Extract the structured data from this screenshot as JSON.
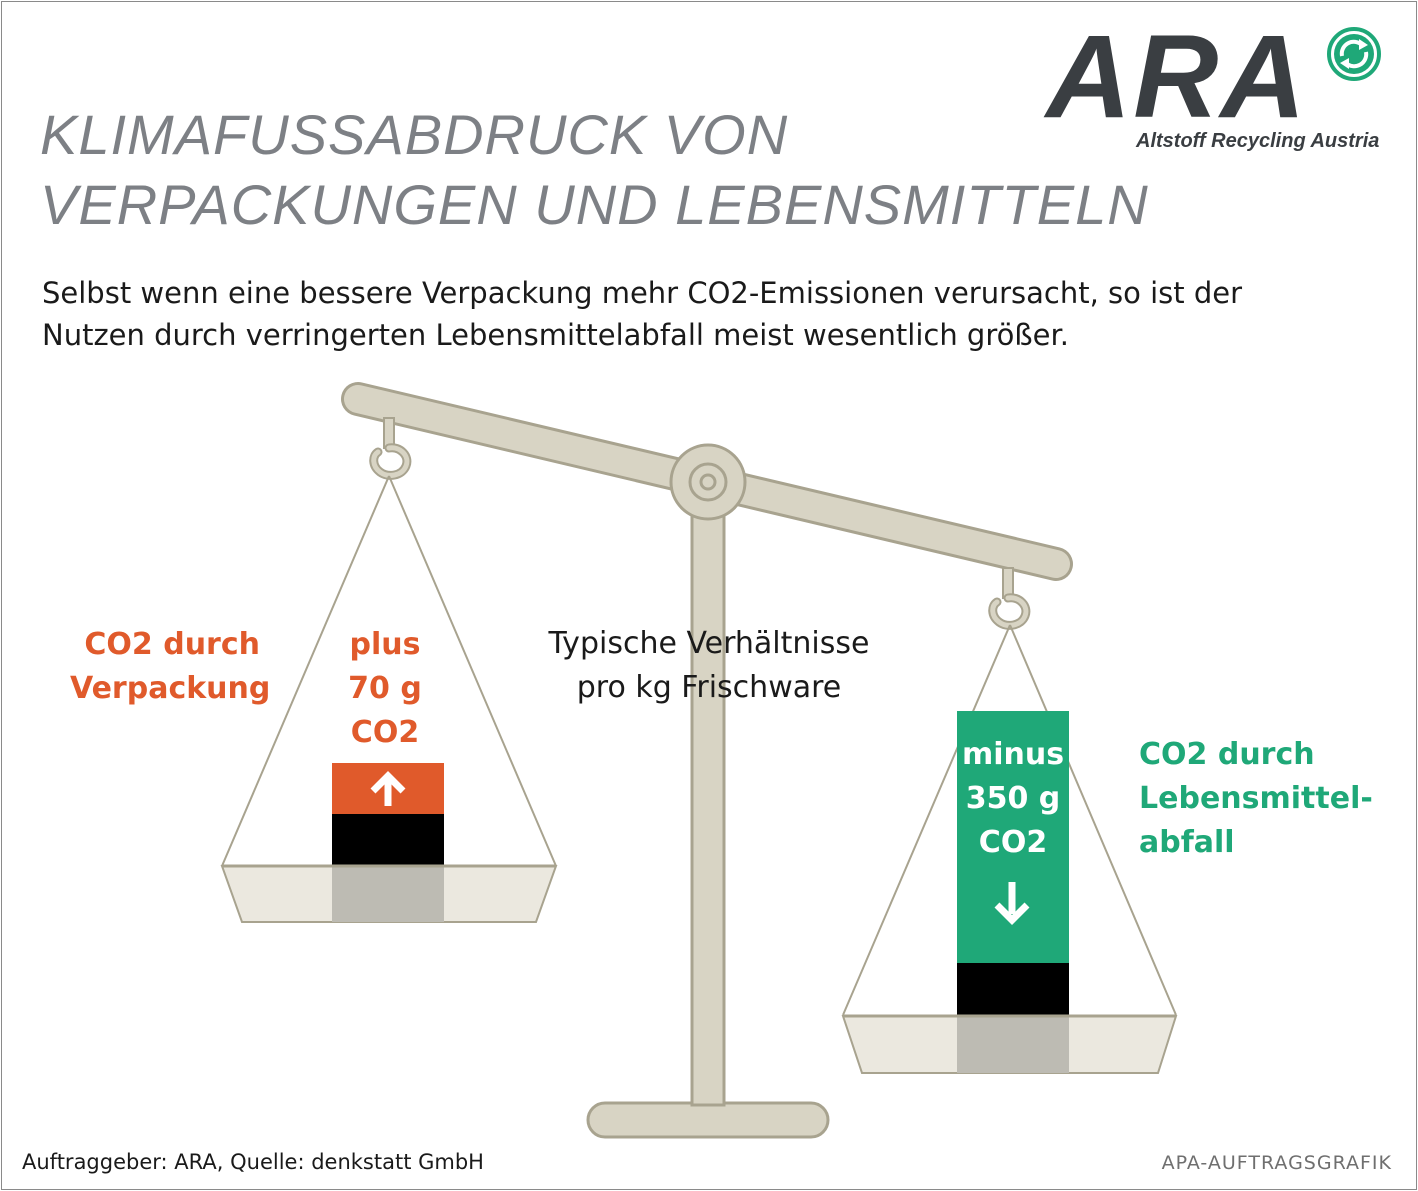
{
  "logo": {
    "name": "ARA",
    "tagline": "Altstoff Recycling Austria",
    "colors": {
      "text": "#3a3e42",
      "mark": "#1fa878"
    },
    "icon": "recycling-arrows-icon"
  },
  "title": {
    "line1": "KLIMAFUSSABDRUCK VON",
    "line2": "VERPACKUNGEN UND LEBENSMITTELN"
  },
  "subtitle": {
    "line1": "Selbst wenn eine bessere Verpackung mehr CO2-Emissionen verursacht, so ist der",
    "line2": "Nutzen durch verringerten Lebensmittelabfall meist wesentlich größer."
  },
  "center_label": {
    "line1": "Typische Verhältnisse",
    "line2": "pro kg Frischware"
  },
  "left_pan": {
    "label": {
      "line1": "CO2 durch",
      "line2": "Verpackung"
    },
    "value": {
      "line1": "plus",
      "line2": "70 g",
      "line3": "CO2"
    },
    "grams": 70,
    "direction": "up",
    "color": "#e05a2b",
    "icon": "arrow-up-icon"
  },
  "right_pan": {
    "label": {
      "line1": "CO2 durch",
      "line2": "Lebensmittel-",
      "line3": "abfall"
    },
    "value": {
      "line1": "minus",
      "line2": "350 g",
      "line3": "CO2"
    },
    "grams": 350,
    "direction": "down",
    "color": "#1fa878",
    "icon": "arrow-down-icon"
  },
  "colors": {
    "scale": "#d8d4c4",
    "scale_outline": "#a8a38f",
    "base_block": "#000000"
  },
  "footer": {
    "source": "Auftraggeber: ARA, Quelle: denkstatt GmbH",
    "credit": "APA-AUFTRAGSGRAFIK"
  }
}
